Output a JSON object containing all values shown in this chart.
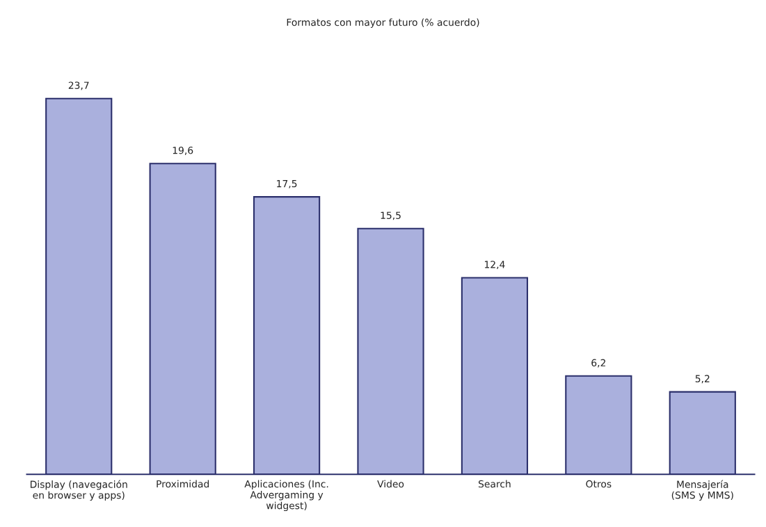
{
  "chart_data": {
    "type": "bar",
    "title": "Formatos con mayor futuro (% acuerdo)",
    "categories": [
      "Display (navegación\nen browser y apps)",
      "Proximidad",
      "Aplicaciones (Inc.\nAdvergaming y\nwidgest)",
      "Video",
      "Search",
      "Otros",
      "Mensajería\n(SMS y MMS)"
    ],
    "values": [
      23.7,
      19.6,
      17.5,
      15.5,
      12.4,
      6.2,
      5.2
    ],
    "value_labels": [
      "23,7",
      "19,6",
      "17,5",
      "15,5",
      "12,4",
      "6,2",
      "5,2"
    ],
    "color": "#aab0dd",
    "grid": false,
    "legend": false,
    "tick_labels": "x"
  }
}
